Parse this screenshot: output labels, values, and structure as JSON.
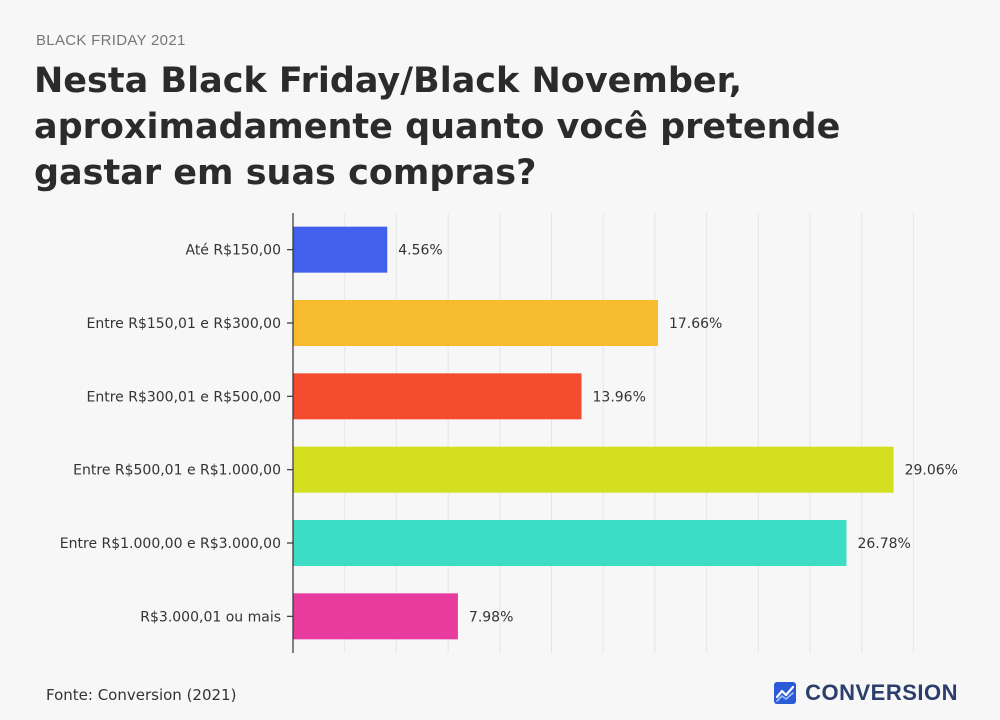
{
  "kicker": "BLACK FRIDAY 2021",
  "title": "Nesta Black Friday/Black November, aproximadamente quanto você pretende gastar em suas compras?",
  "source": "Fonte: Conversion (2021)",
  "brand": {
    "name": "CONVERSION",
    "icon": "chart-line-logo-icon",
    "color": "#2c3e6b"
  },
  "chart_data": {
    "type": "bar",
    "orientation": "horizontal",
    "categories": [
      "Até R$150,00",
      "Entre R$150,01 e R$300,00",
      "Entre R$300,01 e R$500,00",
      "Entre R$500,01 e R$1.000,00",
      "Entre R$1.000,00 e R$3.000,00",
      "R$3.000,01 ou mais"
    ],
    "values": [
      4.56,
      17.66,
      13.96,
      29.06,
      26.78,
      7.98
    ],
    "value_labels": [
      "4.56%",
      "17.66%",
      "13.96%",
      "29.06%",
      "26.78%",
      "7.98%"
    ],
    "colors": [
      "#4260ee",
      "#f6bb2e",
      "#f44c2e",
      "#d4e01f",
      "#3cdcc5",
      "#e73b9e"
    ],
    "xlim": [
      0,
      30
    ],
    "grid": true
  }
}
